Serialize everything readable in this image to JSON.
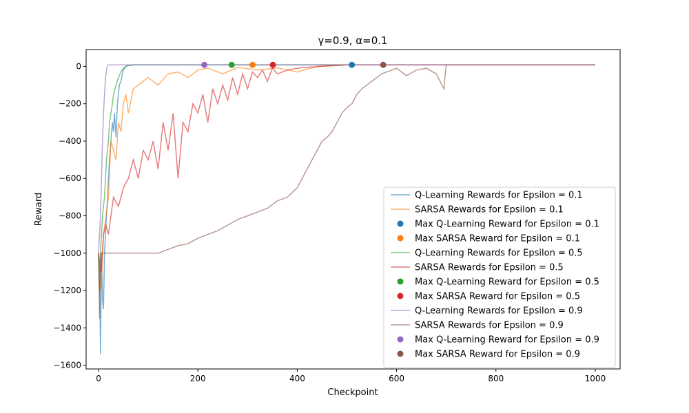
{
  "chart_data": {
    "type": "line",
    "title": "γ=0.9, α=0.1",
    "xlabel": "Checkpoint",
    "ylabel": "Reward",
    "xlim": [
      -25,
      1050
    ],
    "ylim": [
      -1620,
      90
    ],
    "xticks": [
      0,
      200,
      400,
      600,
      800,
      1000
    ],
    "yticks": [
      -1600,
      -1400,
      -1200,
      -1000,
      -800,
      -600,
      -400,
      -200,
      0
    ],
    "grid": false,
    "legend_position": "lower-right",
    "series": [
      {
        "name": "Q-Learning Rewards for Epsilon = 0.1",
        "kind": "line",
        "color": "#1f77b4",
        "opacity": 0.6,
        "x": [
          0,
          2,
          4,
          6,
          8,
          10,
          12,
          14,
          16,
          18,
          20,
          22,
          25,
          28,
          30,
          32,
          35,
          38,
          40,
          42,
          45,
          48,
          50,
          55,
          60,
          70,
          80,
          100,
          1000
        ],
        "y": [
          -1000,
          -1100,
          -1540,
          -1000,
          -1250,
          -1300,
          -1000,
          -900,
          -800,
          -700,
          -600,
          -500,
          -400,
          -300,
          -350,
          -250,
          -380,
          -200,
          -150,
          -100,
          -80,
          -40,
          -20,
          0,
          5,
          8,
          8,
          8,
          8
        ]
      },
      {
        "name": "SARSA Rewards for Epsilon = 0.1",
        "kind": "line",
        "color": "#ff7f0e",
        "opacity": 0.6,
        "x": [
          0,
          5,
          10,
          15,
          20,
          25,
          30,
          35,
          40,
          45,
          50,
          55,
          60,
          70,
          80,
          90,
          100,
          120,
          140,
          160,
          180,
          200,
          220,
          250,
          280,
          320,
          360,
          400,
          440,
          480,
          500,
          1000
        ],
        "y": [
          -1000,
          -1200,
          -900,
          -800,
          -700,
          -400,
          -450,
          -500,
          -300,
          -350,
          -200,
          -150,
          -250,
          -120,
          -100,
          -80,
          -60,
          -100,
          -40,
          -30,
          -60,
          -20,
          -10,
          -40,
          -5,
          -20,
          -8,
          -30,
          0,
          5,
          8,
          8
        ]
      },
      {
        "name": "Max Q-Learning Reward for Epsilon = 0.1",
        "kind": "point",
        "color": "#1f77b4",
        "x": [
          510
        ],
        "y": [
          8
        ]
      },
      {
        "name": "Max SARSA Reward for Epsilon = 0.1",
        "kind": "point",
        "color": "#ff7f0e",
        "x": [
          310
        ],
        "y": [
          8
        ]
      },
      {
        "name": "Q-Learning Rewards for Epsilon = 0.5",
        "kind": "line",
        "color": "#2ca02c",
        "opacity": 0.6,
        "x": [
          0,
          2,
          4,
          6,
          8,
          10,
          12,
          14,
          16,
          18,
          20,
          22,
          25,
          28,
          30,
          35,
          40,
          45,
          50,
          55,
          60,
          70,
          1000
        ],
        "y": [
          -1000,
          -1200,
          -1000,
          -900,
          -800,
          -750,
          -700,
          -600,
          -500,
          -450,
          -400,
          -300,
          -250,
          -200,
          -150,
          -100,
          -60,
          -30,
          -10,
          0,
          5,
          8,
          8
        ]
      },
      {
        "name": "SARSA Rewards for Epsilon = 0.5",
        "kind": "line",
        "color": "#d62728",
        "opacity": 0.6,
        "x": [
          0,
          5,
          10,
          15,
          20,
          25,
          30,
          40,
          50,
          60,
          70,
          80,
          90,
          100,
          110,
          120,
          130,
          140,
          150,
          160,
          170,
          180,
          190,
          200,
          210,
          220,
          230,
          240,
          250,
          260,
          270,
          280,
          290,
          300,
          310,
          320,
          330,
          340,
          350,
          360,
          380,
          400,
          420,
          450,
          480,
          500,
          1000
        ],
        "y": [
          -1000,
          -1100,
          -900,
          -850,
          -900,
          -800,
          -700,
          -750,
          -650,
          -600,
          -500,
          -600,
          -450,
          -500,
          -400,
          -550,
          -300,
          -450,
          -250,
          -600,
          -300,
          -350,
          -200,
          -250,
          -150,
          -300,
          -120,
          -200,
          -100,
          -180,
          -60,
          -150,
          -40,
          -120,
          -30,
          -60,
          -20,
          -80,
          -10,
          -40,
          -20,
          -10,
          -5,
          0,
          5,
          8,
          8
        ]
      },
      {
        "name": "Max Q-Learning Reward for Epsilon = 0.5",
        "kind": "point",
        "color": "#2ca02c",
        "x": [
          268
        ],
        "y": [
          8
        ]
      },
      {
        "name": "Max SARSA Reward for Epsilon = 0.5",
        "kind": "point",
        "color": "#d62728",
        "x": [
          351
        ],
        "y": [
          8
        ]
      },
      {
        "name": "Q-Learning Rewards for Epsilon = 0.9",
        "kind": "line",
        "color": "#9467bd",
        "opacity": 0.6,
        "x": [
          0,
          2,
          4,
          6,
          8,
          10,
          12,
          14,
          16,
          18,
          20,
          25,
          1000
        ],
        "y": [
          -1000,
          -900,
          -800,
          -600,
          -400,
          -250,
          -150,
          -60,
          -20,
          5,
          8,
          8,
          8
        ]
      },
      {
        "name": "SARSA Rewards for Epsilon = 0.9",
        "kind": "line",
        "color": "#8c564b",
        "opacity": 0.6,
        "x": [
          0,
          2,
          4,
          6,
          8,
          10,
          12,
          15,
          20,
          40,
          60,
          80,
          100,
          120,
          140,
          160,
          180,
          200,
          220,
          240,
          260,
          280,
          300,
          320,
          340,
          360,
          380,
          400,
          410,
          420,
          430,
          440,
          450,
          460,
          470,
          480,
          490,
          500,
          510,
          520,
          530,
          540,
          550,
          560,
          570,
          580,
          590,
          600,
          620,
          640,
          660,
          680,
          695,
          700,
          1000
        ],
        "y": [
          -1000,
          -1350,
          -1000,
          -1000,
          -1000,
          -1000,
          -1000,
          -1000,
          -1000,
          -1000,
          -1000,
          -1000,
          -1000,
          -1000,
          -980,
          -960,
          -950,
          -920,
          -900,
          -880,
          -850,
          -820,
          -800,
          -780,
          -760,
          -720,
          -700,
          -650,
          -600,
          -550,
          -500,
          -450,
          -400,
          -380,
          -350,
          -300,
          -250,
          -220,
          -200,
          -150,
          -120,
          -100,
          -80,
          -60,
          -40,
          -30,
          -20,
          -10,
          -50,
          -20,
          -10,
          -40,
          -120,
          8,
          8
        ]
      },
      {
        "name": "Max Q-Learning Reward for Epsilon = 0.9",
        "kind": "point",
        "color": "#9467bd",
        "x": [
          213
        ],
        "y": [
          8
        ]
      },
      {
        "name": "Max SARSA Reward for Epsilon = 0.9",
        "kind": "point",
        "color": "#8c564b",
        "x": [
          573
        ],
        "y": [
          8
        ]
      }
    ]
  }
}
